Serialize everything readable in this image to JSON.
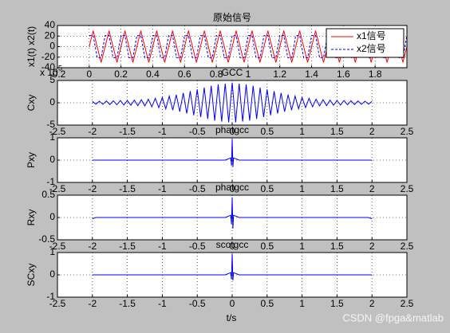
{
  "window_title": "原始信号",
  "x_label": "t/s",
  "watermark": "CSDN @fpga&matlab",
  "chart_data": [
    {
      "type": "line",
      "title": "原始信号",
      "y_label": "x1(t) x2(t)",
      "grid": true,
      "legend": "upper right",
      "xlim": [
        -0.2,
        2
      ],
      "xticks": [
        -0.2,
        0,
        0.2,
        0.4,
        0.6,
        0.8,
        1,
        1.2,
        1.4,
        1.6,
        1.8
      ],
      "ylim": [
        -40,
        40
      ],
      "yticks": [
        -40,
        -20,
        0,
        20,
        40
      ],
      "x": [
        0,
        0.025,
        0.05,
        0.075,
        0.1,
        0.125,
        0.15,
        0.175,
        0.2,
        0.225,
        0.25,
        0.275,
        0.3,
        0.325,
        0.35,
        0.375,
        0.4,
        0.425,
        0.45,
        0.475,
        0.5,
        0.525,
        0.55,
        0.575,
        0.6,
        0.625,
        0.65,
        0.675,
        0.7,
        0.725,
        0.75,
        0.775,
        0.8,
        0.825,
        0.85,
        0.875,
        0.9,
        0.925,
        0.95,
        0.975,
        1,
        1.025,
        1.05,
        1.075,
        1.1,
        1.125,
        1.15,
        1.175,
        1.2,
        1.225,
        1.25,
        1.275,
        1.3,
        1.325,
        1.35,
        1.375,
        1.4,
        1.425,
        1.45,
        1.475,
        1.5,
        1.525,
        1.55,
        1.575,
        1.6,
        1.625,
        1.65,
        1.675,
        1.7,
        1.725,
        1.75,
        1.775,
        1.8,
        1.825,
        1.85,
        1.875,
        1.9,
        1.925,
        1.95,
        1.975,
        2
      ],
      "series": [
        {
          "name": "x1信号",
          "color": "#ff0000",
          "style": "solid",
          "values": [
            0,
            30,
            0,
            -30,
            0,
            30,
            0,
            -30,
            0,
            30,
            0,
            -30,
            0,
            30,
            0,
            -30,
            0,
            30,
            0,
            -30,
            0,
            30,
            0,
            -30,
            0,
            30,
            0,
            -30,
            0,
            30,
            0,
            -30,
            0,
            30,
            0,
            -30,
            0,
            30,
            0,
            -30,
            0,
            30,
            0,
            -30,
            0,
            30,
            0,
            -30,
            0,
            30,
            0,
            -30,
            0,
            30,
            0,
            -30,
            0,
            30,
            0,
            -30,
            0,
            30,
            0,
            -30,
            0,
            30,
            0,
            -30,
            0,
            30,
            0,
            -30,
            0,
            30,
            0,
            -30,
            0,
            30,
            0,
            -30,
            0
          ]
        },
        {
          "name": "x2信号",
          "color": "#0000ff",
          "style": "dashed",
          "values": [
            21,
            21,
            -21,
            -21,
            21,
            21,
            -21,
            -21,
            21,
            21,
            -21,
            -21,
            21,
            21,
            -21,
            -21,
            21,
            21,
            -21,
            -21,
            21,
            21,
            -21,
            -21,
            21,
            21,
            -21,
            -21,
            21,
            21,
            -21,
            -21,
            21,
            21,
            -21,
            -21,
            21,
            21,
            -21,
            -21,
            21,
            21,
            -21,
            -21,
            21,
            21,
            -21,
            -21,
            21,
            21,
            -21,
            -21,
            21,
            21,
            -21,
            -21,
            21,
            21,
            -21,
            -21,
            21,
            21,
            -21,
            -21,
            21,
            21,
            -21,
            -21,
            21,
            21,
            -21,
            -21,
            21,
            21,
            -21,
            -21,
            21,
            21,
            -21,
            -21,
            21
          ]
        }
      ]
    },
    {
      "type": "line",
      "title": "GCC",
      "y_label": "Cxy",
      "grid": true,
      "y_multiplier": "x 10",
      "y_exponent": "-5",
      "xlim": [
        -2.5,
        2.5
      ],
      "xticks": [
        -2.5,
        -2,
        -1.5,
        -1,
        -0.5,
        0,
        0.5,
        1,
        1.5,
        2,
        2.5
      ],
      "ylim": [
        -5,
        5
      ],
      "yticks": [
        -5,
        0,
        5
      ],
      "x": [
        -2,
        -1.95,
        -1.9,
        -1.85,
        -1.8,
        -1.75,
        -1.7,
        -1.65,
        -1.6,
        -1.55,
        -1.5,
        -1.45,
        -1.4,
        -1.35,
        -1.3,
        -1.25,
        -1.2,
        -1.15,
        -1.1,
        -1.05,
        -1,
        -0.95,
        -0.9,
        -0.85,
        -0.8,
        -0.75,
        -0.7,
        -0.65,
        -0.6,
        -0.55,
        -0.5,
        -0.45,
        -0.4,
        -0.35,
        -0.3,
        -0.25,
        -0.2,
        -0.15,
        -0.1,
        -0.05,
        0,
        0.05,
        0.1,
        0.15,
        0.2,
        0.25,
        0.3,
        0.35,
        0.4,
        0.45,
        0.5,
        0.55,
        0.6,
        0.65,
        0.7,
        0.75,
        0.8,
        0.85,
        0.9,
        0.95,
        1,
        1.05,
        1.1,
        1.15,
        1.2,
        1.25,
        1.3,
        1.35,
        1.4,
        1.45,
        1.5,
        1.55,
        1.6,
        1.65,
        1.7,
        1.75,
        1.8,
        1.85,
        1.9,
        1.95,
        2
      ],
      "series": [
        {
          "color": "#0000ff",
          "style": "solid",
          "values": [
            0.3,
            -0.3,
            0.35,
            -0.35,
            0.4,
            -0.4,
            0.45,
            -0.45,
            0.5,
            -0.5,
            0.5,
            -0.55,
            0.6,
            -0.65,
            0.7,
            -0.7,
            0.8,
            -0.9,
            1.0,
            -1.1,
            1.2,
            -1.35,
            1.5,
            -1.65,
            1.8,
            -2.0,
            2.2,
            -2.4,
            2.6,
            -2.8,
            3.0,
            -3.2,
            3.4,
            -3.6,
            3.8,
            -4.0,
            4.1,
            -4.2,
            4.3,
            -4.4,
            4.5,
            -4.4,
            4.3,
            -4.2,
            4.1,
            -4.0,
            3.8,
            -3.6,
            3.4,
            -3.2,
            3.0,
            -2.8,
            2.6,
            -2.4,
            2.2,
            -2.0,
            1.8,
            -1.65,
            1.5,
            -1.35,
            1.2,
            -1.1,
            1.0,
            -0.9,
            0.8,
            -0.7,
            0.7,
            -0.65,
            0.6,
            -0.55,
            0.5,
            -0.5,
            0.5,
            -0.45,
            0.45,
            -0.4,
            0.4,
            -0.35,
            0.35,
            -0.3,
            0.3
          ]
        }
      ]
    },
    {
      "type": "line",
      "title": "phatgcc",
      "y_label": "Pxy",
      "grid": true,
      "xlim": [
        -2.5,
        2.5
      ],
      "xticks": [
        -2.5,
        -2,
        -1.5,
        -1,
        -0.5,
        0,
        0.5,
        1,
        1.5,
        2,
        2.5
      ],
      "ylim": [
        -1,
        1
      ],
      "yticks": [
        -1,
        0,
        1
      ],
      "x": [
        -2,
        -0.1,
        -0.02,
        -0.01,
        0,
        0.01,
        0.02,
        0.1,
        2
      ],
      "series": [
        {
          "color": "#0000ff",
          "style": "solid",
          "values": [
            0,
            0,
            0.1,
            -0.25,
            0.95,
            -0.3,
            0.1,
            0,
            0
          ]
        }
      ]
    },
    {
      "type": "line",
      "title": "phatgcc",
      "y_label": "Rxy",
      "grid": true,
      "xlim": [
        -2.5,
        2.5
      ],
      "xticks": [
        -2.5,
        -2,
        -1.5,
        -1,
        -0.5,
        0,
        0.5,
        1,
        1.5,
        2,
        2.5
      ],
      "ylim": [
        -0.5,
        0.5
      ],
      "yticks": [
        -0.5,
        0,
        0.5
      ],
      "x": [
        -2,
        -1.95,
        -0.1,
        -0.02,
        -0.01,
        0,
        0.01,
        0.02,
        0.1,
        1.95,
        2
      ],
      "series": [
        {
          "color": "#0000ff",
          "style": "solid",
          "values": [
            -0.03,
            0,
            0,
            0.05,
            -0.15,
            0.45,
            -0.25,
            0.05,
            0,
            0,
            -0.03
          ]
        }
      ]
    },
    {
      "type": "line",
      "title": "scotgcc",
      "y_label": "SCxy",
      "grid": true,
      "xlim": [
        -2.5,
        2.5
      ],
      "xticks": [
        -2.5,
        -2,
        -1.5,
        -1,
        -0.5,
        0,
        0.5,
        1,
        1.5,
        2,
        2.5
      ],
      "ylim": [
        -1,
        1
      ],
      "yticks": [
        -1,
        0,
        1
      ],
      "x": [
        -2,
        -0.1,
        -0.02,
        -0.01,
        0,
        0.01,
        0.02,
        0.1,
        2
      ],
      "series": [
        {
          "color": "#0000ff",
          "style": "solid",
          "values": [
            0,
            0,
            0.1,
            -0.2,
            0.95,
            -0.25,
            0.1,
            0,
            0
          ]
        }
      ]
    }
  ]
}
